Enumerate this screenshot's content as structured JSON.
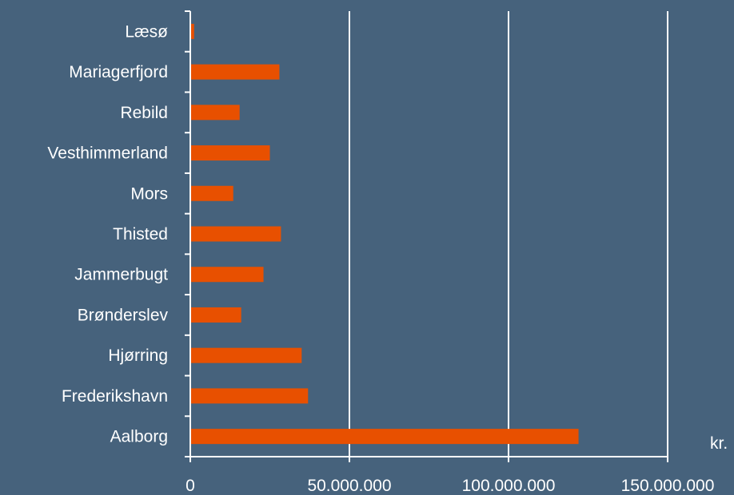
{
  "chart_data": {
    "type": "bar",
    "orientation": "horizontal",
    "categories": [
      "Aalborg",
      "Frederikshavn",
      "Hjørring",
      "Brønderslev",
      "Jammerbugt",
      "Thisted",
      "Mors",
      "Vesthimmerland",
      "Rebild",
      "Mariagerfjord",
      "Læsø"
    ],
    "values": [
      122000000,
      37000000,
      35000000,
      16000000,
      23000000,
      28500000,
      13500000,
      25000000,
      15500000,
      28000000,
      1200000
    ],
    "xlim": [
      0,
      150000000
    ],
    "xticks": [
      0,
      50000000,
      100000000,
      150000000
    ],
    "xtick_labels": [
      "0",
      "50.000.000",
      "100.000.000",
      "150.000.000"
    ],
    "unit": "kr.",
    "grid": "vertical",
    "bar_color": "#E85000",
    "background_color": "#46627C",
    "text_color": "#FFFFFF"
  }
}
